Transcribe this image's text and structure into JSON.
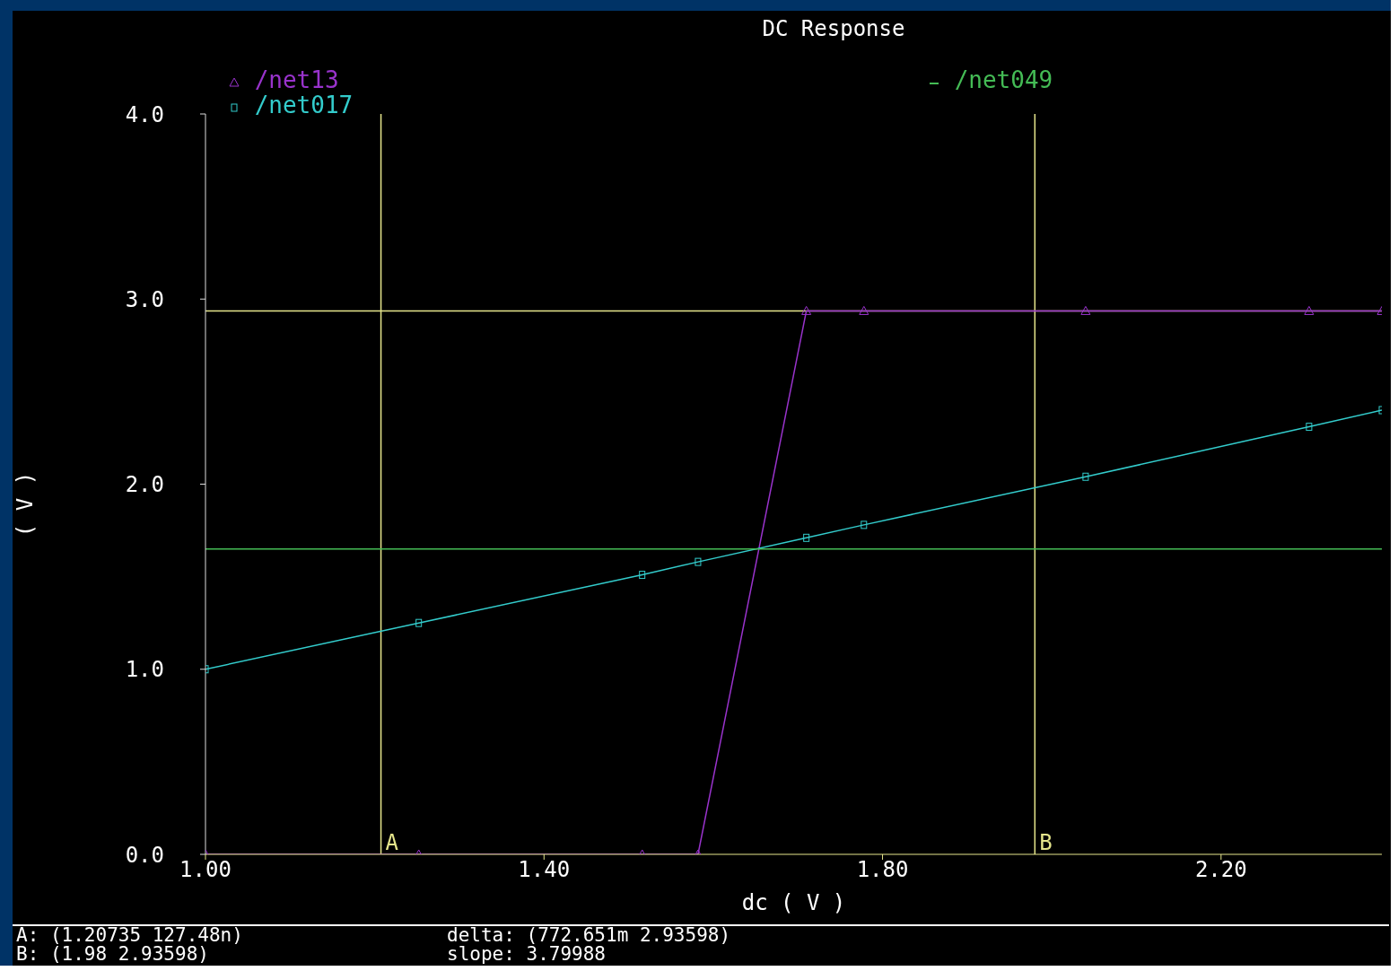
{
  "chart_data": {
    "type": "line",
    "title": "DC Response",
    "xlabel": "dc ( V )",
    "ylabel": "( V )",
    "x": [
      1.0,
      1.252,
      1.516,
      1.582,
      1.71,
      1.778,
      2.04,
      2.304,
      2.39
    ],
    "series": [
      {
        "name": "/net13",
        "color": "#9933cc",
        "marker": "triangle",
        "values": [
          0,
          0,
          0,
          0,
          2.936,
          2.936,
          2.936,
          2.936,
          2.936
        ]
      },
      {
        "name": "/net017",
        "color": "#33cccc",
        "marker": "square",
        "values": [
          1.0,
          1.25,
          1.51,
          1.58,
          1.71,
          1.78,
          2.04,
          2.31,
          2.4
        ]
      },
      {
        "name": "/net049",
        "color": "#44bb55",
        "marker": "none",
        "values": [
          1.65,
          1.65,
          1.65,
          1.65,
          1.65,
          1.65,
          1.65,
          1.65,
          1.65
        ]
      }
    ],
    "xlim": [
      1.0,
      2.39
    ],
    "xticks": [
      {
        "value": 1.0,
        "label": "1.00"
      },
      {
        "value": 1.4,
        "label": "1.40"
      },
      {
        "value": 1.8,
        "label": "1.80"
      },
      {
        "value": 2.2,
        "label": "2.20"
      }
    ],
    "ylim": [
      0,
      4
    ],
    "yticks": [
      {
        "value": 0,
        "label": "0.0"
      },
      {
        "value": 1,
        "label": "1.0"
      },
      {
        "value": 2,
        "label": "2.0"
      },
      {
        "value": 3,
        "label": "3.0"
      },
      {
        "value": 4,
        "label": "4.0"
      }
    ],
    "ref_lines": [
      {
        "axis": "x",
        "value": 1.20735,
        "label": "A",
        "color": "#e6e68c"
      },
      {
        "axis": "x",
        "value": 1.98,
        "label": "B",
        "color": "#e6e68c"
      },
      {
        "axis": "y",
        "value": 2.93598,
        "color": "#e6e68c"
      }
    ],
    "annotations": [
      "A: (1.20735 127.48n)",
      "delta: (772.651m 2.93598)",
      "B: (1.98 2.93598)",
      "slope: 3.79988"
    ],
    "legend": "top",
    "grid": false,
    "line_style": "solid"
  }
}
